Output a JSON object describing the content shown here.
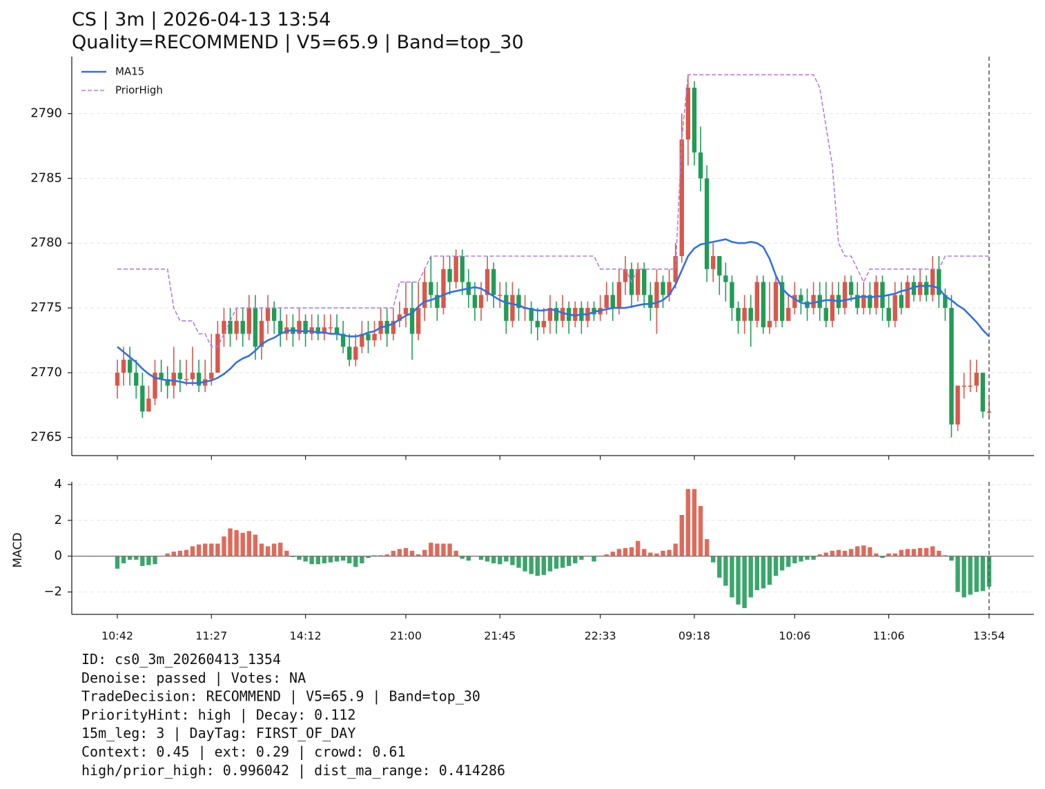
{
  "chart_data": [
    {
      "type": "candlestick",
      "title": "CS | 3m | 2026-04-13 13:54",
      "subtitle": "Quality=RECOMMEND | V5=65.9 | Band=top_30",
      "categories": [
        "10:42",
        null,
        null,
        null,
        null,
        null,
        null,
        null,
        null,
        null,
        null,
        null,
        null,
        null,
        null,
        "11:27",
        null,
        null,
        null,
        null,
        null,
        null,
        null,
        null,
        null,
        null,
        null,
        null,
        null,
        null,
        "14:12",
        null,
        null,
        null,
        null,
        null,
        null,
        null,
        null,
        null,
        null,
        null,
        null,
        null,
        null,
        null,
        "21:00",
        null,
        null,
        null,
        null,
        null,
        null,
        null,
        null,
        null,
        null,
        null,
        null,
        null,
        null,
        "21:45",
        null,
        null,
        null,
        null,
        null,
        null,
        null,
        null,
        null,
        null,
        null,
        null,
        null,
        null,
        null,
        "22:33",
        null,
        null,
        null,
        null,
        null,
        null,
        null,
        null,
        null,
        null,
        null,
        null,
        null,
        null,
        "09:18",
        null,
        null,
        null,
        null,
        null,
        null,
        null,
        null,
        null,
        null,
        null,
        null,
        null,
        null,
        null,
        "10:06",
        null,
        null,
        null,
        null,
        null,
        null,
        null,
        null,
        null,
        null,
        null,
        null,
        null,
        null,
        "11:06",
        null,
        null,
        null,
        null,
        null,
        null,
        null,
        null,
        null,
        null,
        null,
        null,
        null,
        null,
        null,
        "13:54"
      ],
      "open": [
        2769,
        2770,
        2771,
        2770,
        2769,
        2767,
        2768,
        2770,
        2769.5,
        2769,
        2770,
        2769.5,
        2769.5,
        2770,
        2769,
        2769.5,
        2770,
        2773,
        2774,
        2773,
        2774,
        2773,
        2775,
        2772,
        2774,
        2775,
        2774,
        2773,
        2773.5,
        2773,
        2774,
        2773,
        2773.5,
        2773,
        2773.5,
        2773.5,
        2773,
        2772,
        2771,
        2772,
        2773,
        2772.5,
        2773,
        2774,
        2773,
        2774,
        2774.5,
        2775,
        2773,
        2775,
        2777,
        2776,
        2775,
        2778,
        2777,
        2779,
        2777,
        2776,
        2775,
        2776,
        2778,
        2776,
        2776,
        2774,
        2776,
        2775,
        2775,
        2774,
        2773.5,
        2774,
        2775,
        2774,
        2775,
        2774,
        2775,
        2774,
        2775,
        2774.5,
        2775,
        2776,
        2775,
        2777,
        2778,
        2776,
        2778,
        2776,
        2775,
        2777,
        2776,
        2777,
        2779,
        2788,
        2792,
        2787,
        2785,
        2778,
        2779,
        2777.5,
        2777,
        2775,
        2774,
        2775,
        2774,
        2777,
        2773.5,
        2774,
        2777,
        2774,
        2775,
        2776,
        2775.5,
        2775,
        2776,
        2775,
        2774,
        2776,
        2775,
        2777,
        2776,
        2775,
        2776,
        2775,
        2777,
        2775,
        2774,
        2776,
        2775,
        2777,
        2776,
        2777,
        2776,
        2778,
        2776,
        2775,
        2766,
        2769,
        2769,
        2769,
        2770,
        2767
      ],
      "high": [
        2771,
        2772,
        2772,
        2771,
        2770,
        2769,
        2771,
        2771,
        2770.5,
        2772,
        2771,
        2771,
        2772,
        2771,
        2771,
        2773,
        2774,
        2775,
        2775,
        2775,
        2775,
        2776,
        2776,
        2775,
        2776,
        2775.5,
        2775,
        2774.5,
        2774.5,
        2775,
        2774.5,
        2774.5,
        2774.5,
        2774.5,
        2774.5,
        2774.5,
        2774,
        2773,
        2773,
        2774,
        2774,
        2774,
        2775,
        2775,
        2775,
        2775.5,
        2777,
        2777,
        2777,
        2778,
        2779,
        2777,
        2779,
        2779,
        2779.5,
        2779.5,
        2778,
        2777,
        2777,
        2779,
        2778.5,
        2777,
        2777,
        2777,
        2776.5,
        2776,
        2775.5,
        2775,
        2775,
        2776,
        2775.5,
        2776,
        2775.5,
        2775.5,
        2775.5,
        2775.5,
        2775.5,
        2776,
        2777,
        2777,
        2778,
        2779,
        2778.5,
        2778.5,
        2778.5,
        2777,
        2778,
        2777.5,
        2778,
        2780,
        2790,
        2793,
        2792.5,
        2789,
        2786,
        2780,
        2779,
        2778.5,
        2777.5,
        2775.5,
        2776,
        2776,
        2777.5,
        2777.5,
        2777,
        2777.5,
        2777.5,
        2776,
        2777,
        2776.5,
        2776.5,
        2777,
        2777,
        2777,
        2777,
        2777,
        2777.5,
        2777.5,
        2777,
        2777,
        2777,
        2777.5,
        2777.5,
        2776,
        2777,
        2777,
        2777.5,
        2777.5,
        2778,
        2777.5,
        2779,
        2779,
        2776.5,
        2776,
        2769,
        2770,
        2771,
        2771,
        2770,
        2768
      ],
      "low": [
        2768,
        2769,
        2769,
        2768,
        2766.5,
        2767,
        2767.5,
        2768.5,
        2768,
        2768,
        2768.5,
        2769,
        2769,
        2768.5,
        2768.5,
        2769,
        2770,
        2772,
        2772,
        2772.5,
        2772,
        2772.5,
        2771,
        2771,
        2773,
        2773,
        2772,
        2772.5,
        2772,
        2772.5,
        2772,
        2772.5,
        2772.5,
        2772.5,
        2773,
        2772.5,
        2771.5,
        2770.5,
        2770.5,
        2771.5,
        2771.5,
        2772,
        2772.5,
        2772,
        2772.5,
        2773.5,
        2773.5,
        2771,
        2772.5,
        2774,
        2775,
        2774,
        2774.5,
        2776,
        2776.5,
        2776,
        2775,
        2774,
        2774,
        2775.5,
        2775,
        2775,
        2773,
        2773.5,
        2774,
        2774,
        2773,
        2772.5,
        2773,
        2773,
        2773,
        2773.5,
        2773,
        2773.5,
        2773,
        2773.5,
        2774,
        2774,
        2774.5,
        2774,
        2774.5,
        2776,
        2775,
        2775.5,
        2775,
        2774,
        2773,
        2775,
        2775.5,
        2776.5,
        2778.5,
        2786,
        2786,
        2784,
        2777,
        2777,
        2776,
        2775.5,
        2774,
        2773,
        2773,
        2772,
        2773.5,
        2773,
        2773,
        2773.5,
        2773.5,
        2774,
        2774.5,
        2774.5,
        2774,
        2774.5,
        2774,
        2773.5,
        2773.5,
        2774.5,
        2774.5,
        2775.5,
        2774.5,
        2774.5,
        2774.5,
        2774.5,
        2774,
        2773.5,
        2773.5,
        2774.5,
        2775,
        2775.5,
        2775.5,
        2775.5,
        2775.5,
        2775,
        2774,
        2765,
        2765.5,
        2768,
        2768.5,
        2768.5,
        2766.5,
        2766.5
      ],
      "close": [
        2770,
        2771,
        2770,
        2769,
        2767,
        2768,
        2770,
        2769.5,
        2769,
        2770,
        2769.5,
        2769.5,
        2770,
        2769,
        2769.5,
        2770,
        2773,
        2774,
        2773,
        2774,
        2773,
        2775,
        2772,
        2774,
        2775,
        2774,
        2773,
        2773.5,
        2773,
        2774,
        2773,
        2773.5,
        2773,
        2773.5,
        2773.5,
        2773,
        2772,
        2771,
        2772,
        2773,
        2772.5,
        2773,
        2774,
        2773,
        2774,
        2774.5,
        2775,
        2773,
        2775,
        2777,
        2776,
        2775,
        2778,
        2777,
        2779,
        2777,
        2776,
        2775,
        2776,
        2778,
        2776,
        2776,
        2774,
        2776,
        2775,
        2775,
        2774,
        2773.5,
        2774,
        2775,
        2774,
        2775,
        2774,
        2775,
        2774,
        2775,
        2774.5,
        2775,
        2776,
        2775,
        2777,
        2778,
        2776,
        2778,
        2776,
        2775,
        2777,
        2776,
        2777,
        2779,
        2788,
        2792,
        2787,
        2785,
        2778,
        2779,
        2777.5,
        2777,
        2775,
        2774,
        2775,
        2774,
        2777,
        2773.5,
        2774,
        2777,
        2774,
        2775,
        2776,
        2775.5,
        2775,
        2776,
        2775,
        2774,
        2776,
        2775,
        2777,
        2776,
        2775,
        2776,
        2775,
        2777,
        2775,
        2774,
        2776,
        2775,
        2777,
        2776,
        2777,
        2776,
        2778,
        2776,
        2775,
        2766,
        2769,
        2769,
        2769,
        2770,
        2767,
        2767
      ],
      "up_color": "#d9574a",
      "down_color": "#1f9d55",
      "series": [
        {
          "name": "MA15",
          "color": "#2f6fe6",
          "style": "solid",
          "values": [
            2772,
            2771.6,
            2771.2,
            2770.8,
            2770.3,
            2769.9,
            2769.6,
            2769.5,
            2769.4,
            2769.4,
            2769.3,
            2769.2,
            2769.2,
            2769.2,
            2769.3,
            2769.4,
            2769.6,
            2769.9,
            2770.3,
            2770.8,
            2771.1,
            2771.3,
            2771.7,
            2772.2,
            2772.5,
            2772.7,
            2773,
            2773.2,
            2773.3,
            2773.2,
            2773.2,
            2773.2,
            2773.1,
            2773.1,
            2773,
            2773,
            2772.9,
            2772.8,
            2772.8,
            2772.9,
            2773.1,
            2773.2,
            2773.5,
            2773.6,
            2773.8,
            2774.1,
            2774.4,
            2774.6,
            2775.1,
            2775.5,
            2775.6,
            2775.8,
            2776,
            2776.2,
            2776.3,
            2776.4,
            2776.5,
            2776.6,
            2776.5,
            2776.2,
            2775.9,
            2775.6,
            2775.4,
            2775.3,
            2775.2,
            2775,
            2774.9,
            2774.8,
            2774.8,
            2774.9,
            2774.8,
            2774.6,
            2774.5,
            2774.4,
            2774.5,
            2774.5,
            2774.7,
            2774.8,
            2774.9,
            2775,
            2775,
            2775,
            2775.1,
            2775.2,
            2775.3,
            2775.3,
            2775.4,
            2775.6,
            2776,
            2776.8,
            2777.9,
            2779,
            2779.6,
            2779.9,
            2780,
            2780.1,
            2780.2,
            2780.3,
            2780.1,
            2780,
            2780,
            2780.1,
            2780,
            2779.7,
            2778.8,
            2777.5,
            2776.5,
            2776,
            2775.7,
            2775.4,
            2775.3,
            2775.4,
            2775.5,
            2775.6,
            2775.6,
            2775.5,
            2775.6,
            2775.7,
            2775.8,
            2775.9,
            2775.8,
            2775.9,
            2775.9,
            2776,
            2776.1,
            2776.3,
            2776.4,
            2776.6,
            2776.7,
            2776.7,
            2776.7,
            2776.5,
            2775.9,
            2775.6,
            2775.2,
            2774.9,
            2774.4,
            2773.9,
            2773.3,
            2772.8
          ]
        },
        {
          "name": "PriorHigh",
          "color": "#b07de0",
          "style": "dashed",
          "values": [
            2778,
            2778,
            2778,
            2778,
            2778,
            2778,
            2778,
            2778,
            2778,
            2775,
            2774,
            2774,
            2774,
            2773,
            2773,
            2772,
            2772,
            2773,
            2774,
            2775,
            2775,
            2775,
            2775,
            2775,
            2775,
            2775,
            2775,
            2775,
            2775,
            2775,
            2775,
            2775,
            2775,
            2775,
            2775,
            2775,
            2775,
            2775,
            2775,
            2775,
            2775,
            2775,
            2775,
            2775,
            2775,
            2777,
            2777,
            2777,
            2777,
            2778,
            2779,
            2779,
            2779,
            2779,
            2779,
            2779,
            2779,
            2779,
            2779,
            2779,
            2779,
            2779,
            2779,
            2779,
            2779,
            2779,
            2779,
            2779,
            2779,
            2779,
            2779,
            2779,
            2779,
            2779,
            2779,
            2779,
            2779,
            2778,
            2778,
            2778,
            2778,
            2778,
            2777,
            2778,
            2778,
            2778,
            2778,
            2778,
            2778,
            2778,
            2788,
            2793,
            2793,
            2793,
            2793,
            2793,
            2793,
            2793,
            2793,
            2793,
            2793,
            2793,
            2793,
            2793,
            2793,
            2793,
            2793,
            2793,
            2793,
            2793,
            2793,
            2793,
            2792,
            2789,
            2786,
            2780,
            2779,
            2779,
            2778,
            2777,
            2778,
            2778,
            2778,
            2778,
            2778,
            2778,
            2778,
            2778,
            2778,
            2778,
            2778,
            2778,
            2779,
            2779,
            2779,
            2779,
            2779,
            2779,
            2779,
            2779
          ]
        }
      ],
      "ylim": [
        2763.6,
        2794.4
      ],
      "yticks": [
        2765,
        2770,
        2775,
        2780,
        2785,
        2790
      ],
      "grid": true,
      "legend": "upper left"
    },
    {
      "type": "bar",
      "ylabel": "MACD",
      "values": [
        -0.7,
        -0.4,
        -0.2,
        -0.2,
        -0.55,
        -0.5,
        -0.45,
        0,
        0.15,
        0.25,
        0.3,
        0.35,
        0.55,
        0.65,
        0.7,
        0.7,
        0.7,
        1.1,
        1.55,
        1.45,
        1.3,
        1.4,
        1.2,
        0.7,
        0.55,
        0.7,
        0.75,
        0.3,
        -0.05,
        -0.2,
        -0.3,
        -0.45,
        -0.45,
        -0.4,
        -0.35,
        -0.3,
        -0.25,
        -0.4,
        -0.6,
        -0.4,
        -0.1,
        0.05,
        0.05,
        0.1,
        0.3,
        0.4,
        0.45,
        0.3,
        0.1,
        0.35,
        0.75,
        0.7,
        0.7,
        0.7,
        0.3,
        -0.15,
        -0.25,
        0,
        -0.2,
        -0.3,
        -0.4,
        -0.45,
        -0.3,
        -0.5,
        -0.65,
        -0.85,
        -1,
        -1.1,
        -1.05,
        -0.85,
        -0.7,
        -0.65,
        -0.55,
        -0.4,
        -0.2,
        0,
        -0.3,
        0,
        0.1,
        0.25,
        0.4,
        0.45,
        0.5,
        0.85,
        0.4,
        0.2,
        0.15,
        0.3,
        0.35,
        0.7,
        2.3,
        3.75,
        3.75,
        2.8,
        0.95,
        -0.35,
        -1.2,
        -1.65,
        -2.3,
        -2.7,
        -2.9,
        -2.3,
        -1.9,
        -1.8,
        -1.6,
        -1.1,
        -0.8,
        -0.6,
        -0.4,
        -0.3,
        -0.2,
        -0.2,
        0.1,
        0.2,
        0.3,
        0.35,
        0.3,
        0.4,
        0.55,
        0.6,
        0.5,
        0.15,
        -0.1,
        0.15,
        0.15,
        0.35,
        0.4,
        0.4,
        0.45,
        0.45,
        0.55,
        0.3,
        0.05,
        -0.25,
        -2,
        -2.3,
        -2.15,
        -2,
        -1.95,
        -1.7
      ],
      "up_color": "#e06a5a",
      "down_color": "#3aa66a",
      "ylim": [
        -3.25,
        4.15
      ],
      "yticks": [
        {
          "value": -2,
          "label": "−2"
        },
        0,
        2,
        4
      ],
      "grid": true
    }
  ],
  "footer": [
    "ID: cs0_3m_20260413_1354",
    "Denoise: passed | Votes: NA",
    "TradeDecision: RECOMMEND | V5=65.9 | Band=top_30",
    "PriorityHint: high | Decay: 0.112",
    "15m_leg: 3 | DayTag: FIRST_OF_DAY",
    "Context: 0.45 | ext: 0.29 | crowd: 0.61",
    "high/prior_high: 0.996042 | dist_ma_range: 0.414286"
  ]
}
